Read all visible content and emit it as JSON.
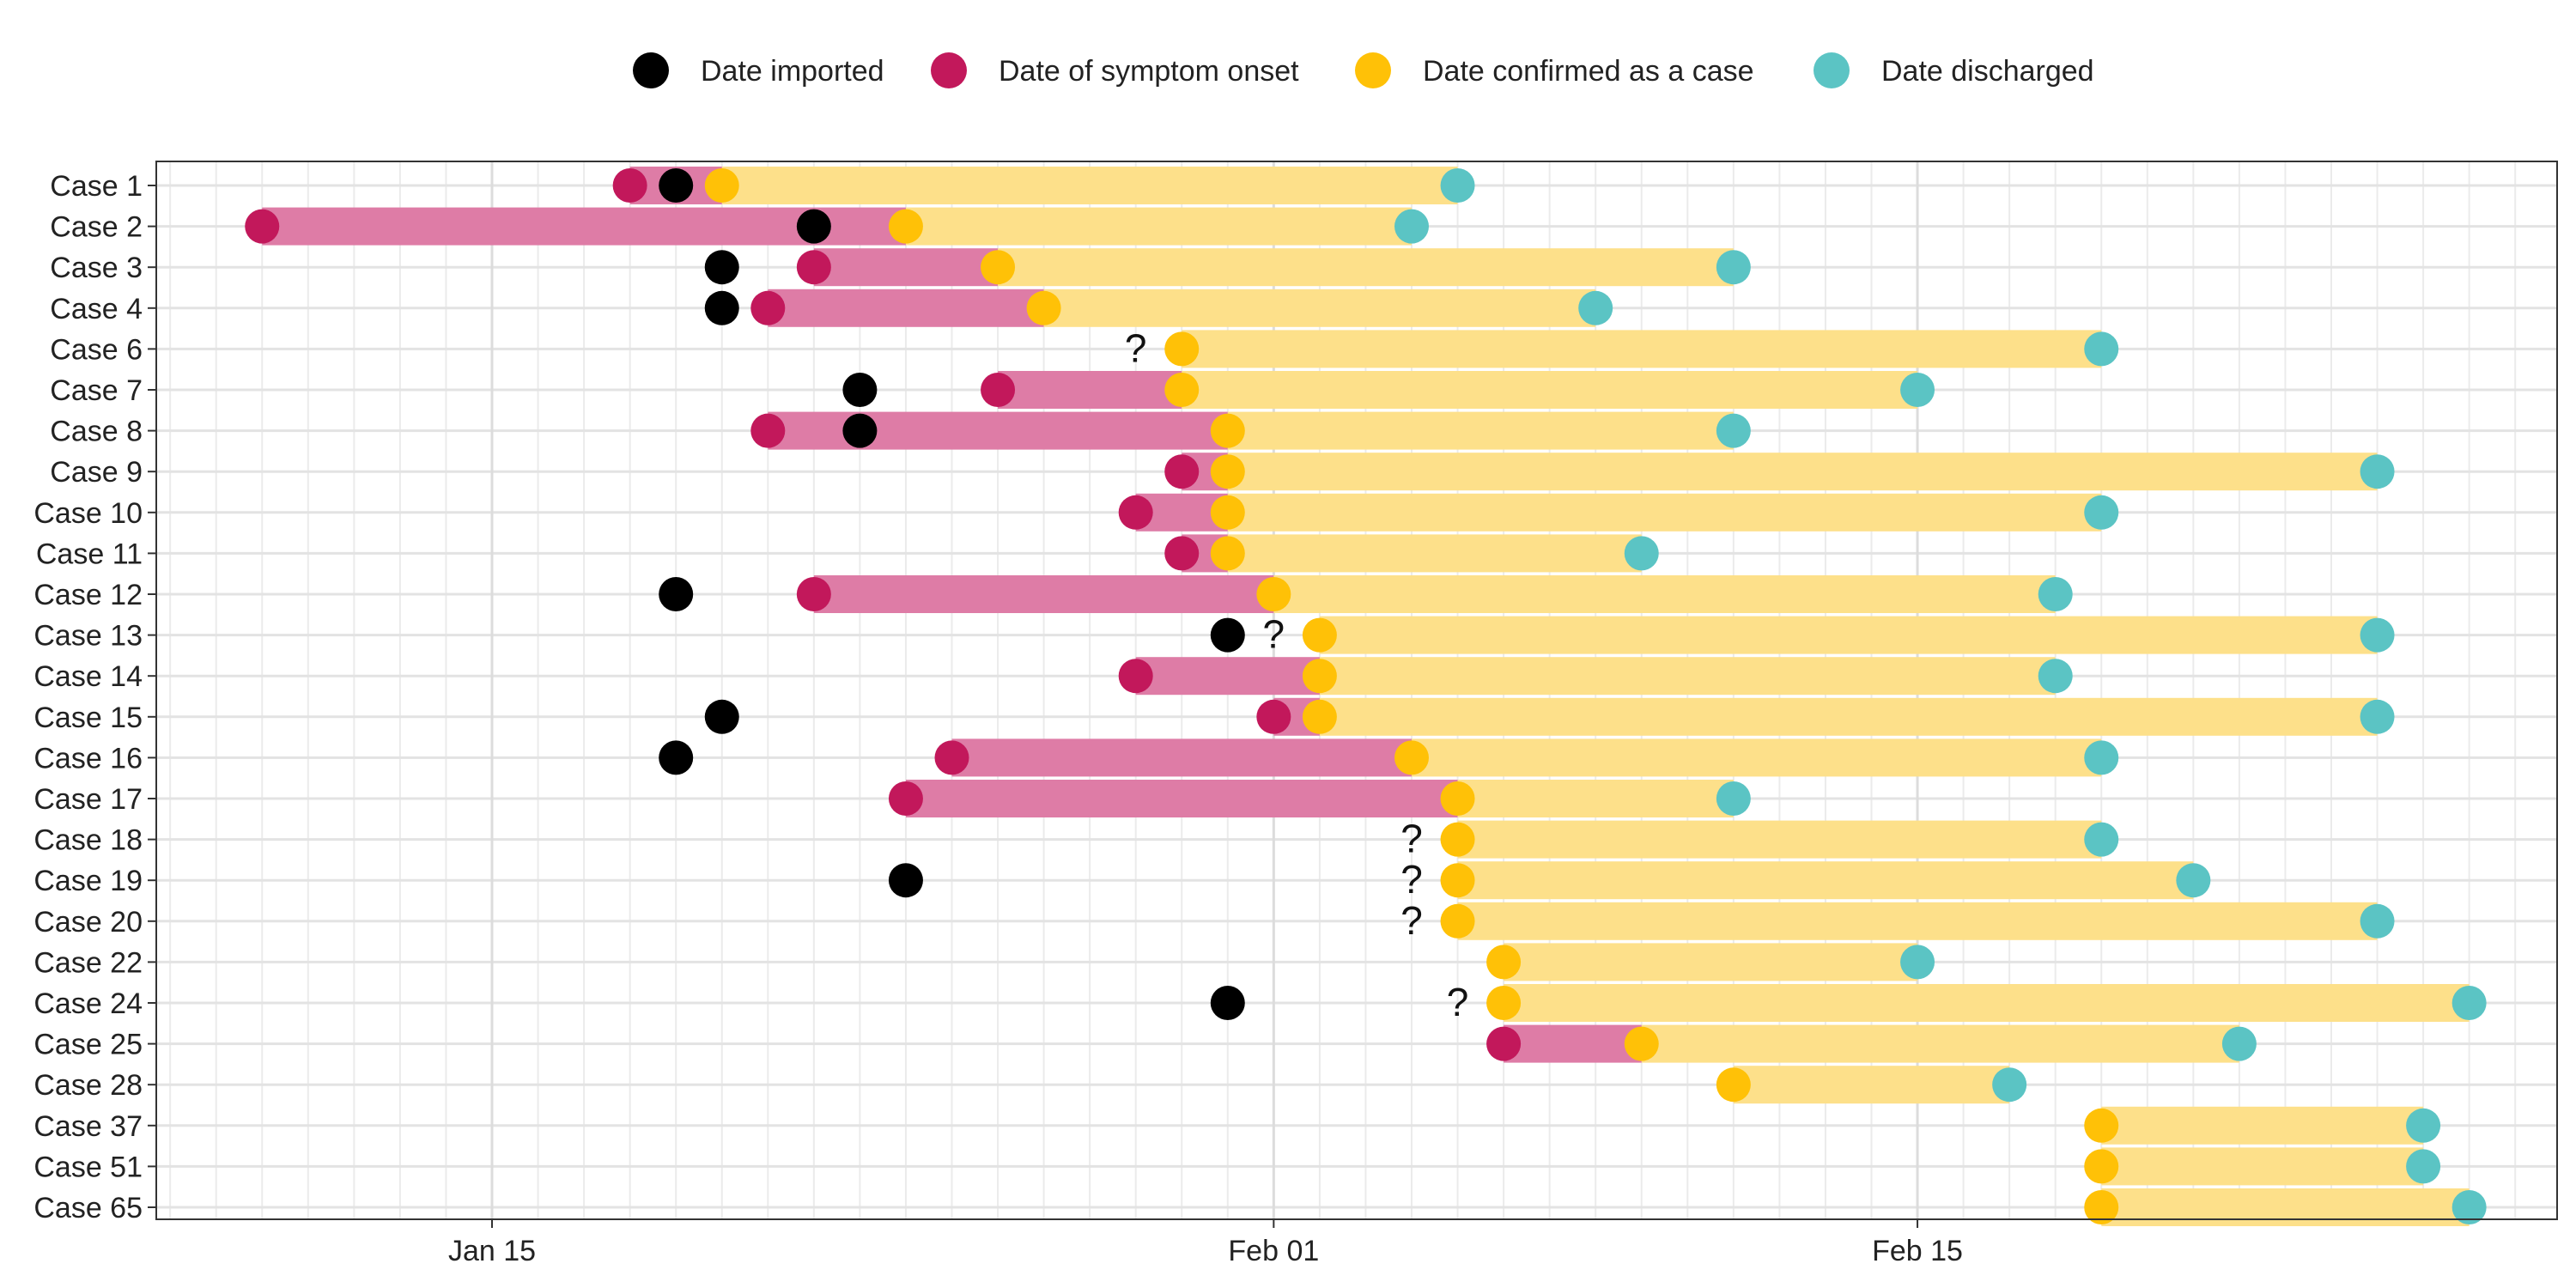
{
  "chart_data": {
    "type": "timeline",
    "title": "",
    "xlabel": "",
    "ylabel": "",
    "x_ticks": [
      "Jan 15",
      "Feb 01",
      "Feb 15"
    ],
    "x_range": [
      "2020-01-07",
      "2020-02-27"
    ],
    "grid": true,
    "legend_position": "top",
    "legend": [
      {
        "key": "imported",
        "label": "Date imported",
        "color": "#000000"
      },
      {
        "key": "onset",
        "label": "Date of symptom onset",
        "color": "#C2185B"
      },
      {
        "key": "confirmed",
        "label": "Date confirmed as a case",
        "color": "#FFC107"
      },
      {
        "key": "discharged",
        "label": "Date discharged",
        "color": "#5BC4C4"
      }
    ],
    "bar_colors": {
      "onset_to_confirmed": "#DE7CA6",
      "confirmed_to_discharged": "#FDE08A"
    },
    "unknown_onset_marker": "?",
    "cases": [
      {
        "label": "Case 1",
        "imported": "2020-01-19",
        "onset": "2020-01-18",
        "confirmed": "2020-01-20",
        "discharged": "2020-02-05"
      },
      {
        "label": "Case 2",
        "imported": "2020-01-22",
        "onset": "2020-01-10",
        "confirmed": "2020-01-24",
        "discharged": "2020-02-04"
      },
      {
        "label": "Case 3",
        "imported": "2020-01-20",
        "onset": "2020-01-22",
        "confirmed": "2020-01-26",
        "discharged": "2020-02-11"
      },
      {
        "label": "Case 4",
        "imported": "2020-01-20",
        "onset": "2020-01-21",
        "confirmed": "2020-01-27",
        "discharged": "2020-02-08"
      },
      {
        "label": "Case 6",
        "imported": null,
        "onset": null,
        "onset_unknown_at": "2020-01-29",
        "confirmed": "2020-01-30",
        "discharged": "2020-02-19"
      },
      {
        "label": "Case 7",
        "imported": "2020-01-23",
        "onset": "2020-01-26",
        "confirmed": "2020-01-30",
        "discharged": "2020-02-15"
      },
      {
        "label": "Case 8",
        "imported": "2020-01-23",
        "onset": "2020-01-21",
        "confirmed": "2020-01-31",
        "discharged": "2020-02-11"
      },
      {
        "label": "Case 9",
        "imported": null,
        "onset": "2020-01-30",
        "confirmed": "2020-01-31",
        "discharged": "2020-02-25"
      },
      {
        "label": "Case 10",
        "imported": null,
        "onset": "2020-01-29",
        "confirmed": "2020-01-31",
        "discharged": "2020-02-19"
      },
      {
        "label": "Case 11",
        "imported": null,
        "onset": "2020-01-30",
        "confirmed": "2020-01-31",
        "discharged": "2020-02-09"
      },
      {
        "label": "Case 12",
        "imported": "2020-01-19",
        "onset": "2020-01-22",
        "confirmed": "2020-02-01",
        "discharged": "2020-02-18"
      },
      {
        "label": "Case 13",
        "imported": "2020-01-31",
        "onset": null,
        "onset_unknown_at": "2020-02-01",
        "confirmed": "2020-02-02",
        "discharged": "2020-02-25"
      },
      {
        "label": "Case 14",
        "imported": null,
        "onset": "2020-01-29",
        "confirmed": "2020-02-02",
        "discharged": "2020-02-18"
      },
      {
        "label": "Case 15",
        "imported": "2020-01-20",
        "onset": "2020-02-01",
        "confirmed": "2020-02-02",
        "discharged": "2020-02-25"
      },
      {
        "label": "Case 16",
        "imported": "2020-01-19",
        "onset": "2020-01-25",
        "confirmed": "2020-02-04",
        "discharged": "2020-02-19"
      },
      {
        "label": "Case 17",
        "imported": null,
        "onset": "2020-01-24",
        "confirmed": "2020-02-05",
        "discharged": "2020-02-11"
      },
      {
        "label": "Case 18",
        "imported": null,
        "onset": null,
        "onset_unknown_at": "2020-02-04",
        "confirmed": "2020-02-05",
        "discharged": "2020-02-19"
      },
      {
        "label": "Case 19",
        "imported": "2020-01-24",
        "onset": null,
        "onset_unknown_at": "2020-02-04",
        "confirmed": "2020-02-05",
        "discharged": "2020-02-21"
      },
      {
        "label": "Case 20",
        "imported": null,
        "onset": null,
        "onset_unknown_at": "2020-02-04",
        "confirmed": "2020-02-05",
        "discharged": "2020-02-25"
      },
      {
        "label": "Case 22",
        "imported": null,
        "onset": null,
        "confirmed": "2020-02-06",
        "discharged": "2020-02-15"
      },
      {
        "label": "Case 24",
        "imported": "2020-01-31",
        "onset": null,
        "onset_unknown_at": "2020-02-05",
        "confirmed": "2020-02-06",
        "discharged": "2020-02-27"
      },
      {
        "label": "Case 25",
        "imported": null,
        "onset": "2020-02-06",
        "confirmed": "2020-02-09",
        "discharged": "2020-02-22"
      },
      {
        "label": "Case 28",
        "imported": null,
        "onset": null,
        "confirmed": "2020-02-11",
        "discharged": "2020-02-17"
      },
      {
        "label": "Case 37",
        "imported": null,
        "onset": null,
        "confirmed": "2020-02-19",
        "discharged": "2020-02-26"
      },
      {
        "label": "Case 51",
        "imported": null,
        "onset": null,
        "confirmed": "2020-02-19",
        "discharged": "2020-02-26"
      },
      {
        "label": "Case 65",
        "imported": null,
        "onset": null,
        "confirmed": "2020-02-19",
        "discharged": "2020-02-27"
      }
    ]
  }
}
